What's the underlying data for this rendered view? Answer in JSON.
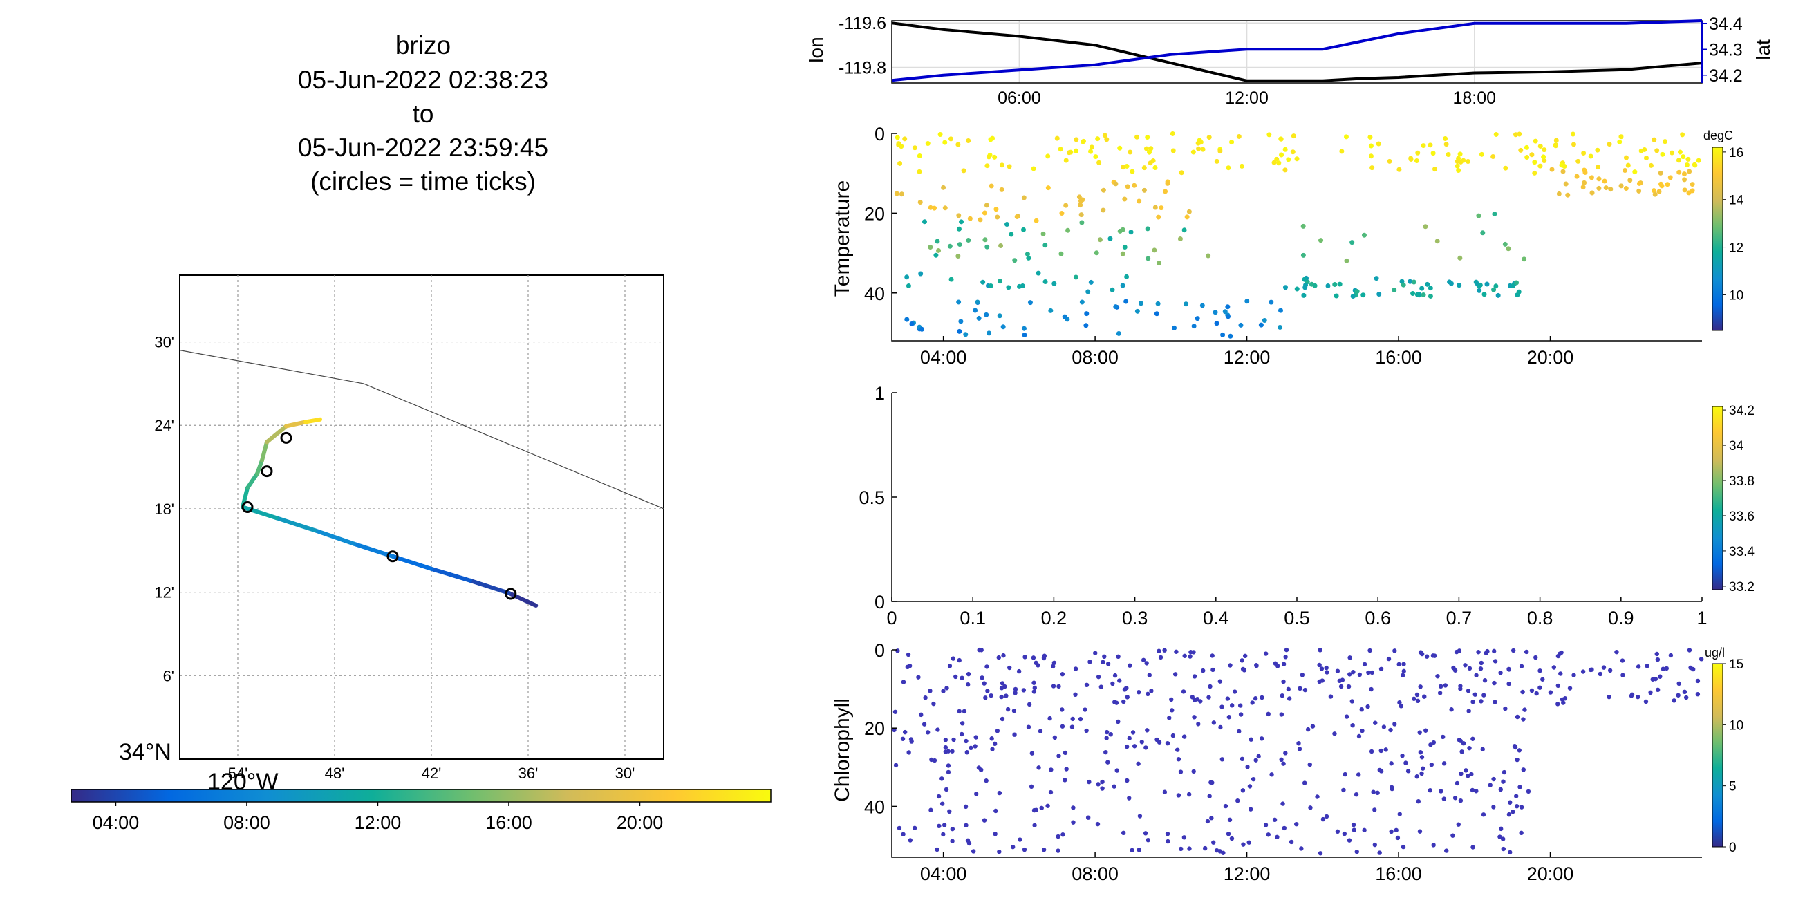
{
  "title": {
    "lines": [
      "brizo",
      "05-Jun-2022 02:38:23",
      "to",
      "05-Jun-2022 23:59:45",
      "(circles = time ticks)"
    ]
  },
  "colors": {
    "lat_axis": "#0000cc",
    "lon_line": "#000000",
    "chlorophyll_point": "#3c36b8",
    "coastline": "#444444",
    "parula": [
      "#352a87",
      "#0268e1",
      "#108ed2",
      "#0fae99",
      "#6ebe6f",
      "#d1bb59",
      "#fec832",
      "#f9fb0e"
    ]
  },
  "chart_data": [
    {
      "id": "track_map",
      "type": "scatter",
      "title": "",
      "xlabel": "",
      "ylabel": "",
      "xlim": [
        -119.96,
        -119.46
      ],
      "ylim": [
        34.0,
        34.58
      ],
      "x_ticks": [
        -119.9,
        -119.8,
        -119.7,
        -119.6,
        -119.5
      ],
      "x_tick_labels": [
        "54'",
        "48'",
        "42'",
        "36'",
        "30'"
      ],
      "y_ticks": [
        34.1,
        34.2,
        34.3,
        34.4,
        34.5
      ],
      "y_tick_labels": [
        "6'",
        "12'",
        "18'",
        "24'",
        "30'"
      ],
      "corner_lat_label": "34°N",
      "corner_lon_label": "120°W",
      "grid": true,
      "coastline": {
        "lon": [
          -119.96,
          -119.77,
          -119.46
        ],
        "lat": [
          34.49,
          34.45,
          34.3
        ]
      },
      "track": {
        "lon": [
          -119.592,
          -119.62,
          -119.66,
          -119.7,
          -119.74,
          -119.78,
          -119.82,
          -119.86,
          -119.895,
          -119.89,
          -119.88,
          -119.875,
          -119.87,
          -119.85,
          -119.83,
          -119.815
        ],
        "lat": [
          34.184,
          34.199,
          34.214,
          34.228,
          34.243,
          34.258,
          34.274,
          34.289,
          34.302,
          34.325,
          34.342,
          34.358,
          34.38,
          34.399,
          34.404,
          34.407
        ],
        "hour": [
          2.64,
          3.5,
          4.5,
          5.6,
          6.8,
          8.0,
          9.2,
          10.4,
          11.6,
          12.6,
          13.6,
          14.8,
          16.0,
          18.0,
          20.5,
          24.0
        ]
      },
      "time_tick_circles": {
        "lon": [
          -119.618,
          -119.74,
          -119.89,
          -119.87,
          -119.85
        ],
        "lat": [
          34.198,
          34.243,
          34.302,
          34.345,
          34.385
        ]
      },
      "colorbar": {
        "ticks": [
          4,
          8,
          12,
          16,
          20
        ],
        "tick_labels": [
          "04:00",
          "08:00",
          "12:00",
          "16:00",
          "20:00"
        ],
        "range": [
          2.64,
          24.0
        ]
      }
    },
    {
      "id": "lon_lat",
      "type": "line",
      "x_ticks": [
        6,
        12,
        18
      ],
      "x_tick_labels": [
        "06:00",
        "12:00",
        "18:00"
      ],
      "xlim": [
        2.64,
        24.0
      ],
      "left_axis": {
        "label": "lon",
        "ylim": [
          -119.87,
          -119.59
        ],
        "ticks": [
          -119.6,
          -119.8
        ],
        "tick_labels": [
          "-119.6",
          "-119.8"
        ]
      },
      "right_axis": {
        "label": "lat",
        "ylim": [
          34.17,
          34.41
        ],
        "ticks": [
          34.2,
          34.3,
          34.4
        ],
        "tick_labels": [
          "34.2",
          "34.3",
          "34.4"
        ]
      },
      "grid": true,
      "series": [
        {
          "name": "lon",
          "axis": "left",
          "x": [
            2.64,
            4,
            6,
            8,
            9,
            10,
            11,
            12,
            13,
            14,
            15,
            16,
            18,
            20,
            22,
            24
          ],
          "y": [
            -119.6,
            -119.63,
            -119.66,
            -119.7,
            -119.74,
            -119.78,
            -119.82,
            -119.86,
            -119.86,
            -119.86,
            -119.85,
            -119.845,
            -119.825,
            -119.82,
            -119.81,
            -119.78
          ]
        },
        {
          "name": "lat",
          "axis": "right",
          "x": [
            2.64,
            4,
            6,
            8,
            9,
            10,
            11,
            12,
            13,
            14,
            15,
            16,
            17,
            18,
            20,
            22,
            24
          ],
          "y": [
            34.18,
            34.2,
            34.22,
            34.24,
            34.26,
            34.28,
            34.29,
            34.3,
            34.3,
            34.3,
            34.33,
            34.36,
            34.38,
            34.4,
            34.4,
            34.4,
            34.41
          ]
        }
      ]
    },
    {
      "id": "temperature",
      "type": "scatter",
      "ylabel": "Temperature",
      "xlim": [
        2.64,
        24.0
      ],
      "ylim": [
        52,
        0
      ],
      "y_ticks": [
        0,
        20,
        40
      ],
      "y_tick_labels": [
        "0",
        "20",
        "40"
      ],
      "x_ticks": [
        4,
        8,
        12,
        16,
        20
      ],
      "x_tick_labels": [
        "04:00",
        "08:00",
        "12:00",
        "16:00",
        "20:00"
      ],
      "colorbar": {
        "label": "degC",
        "range": [
          8.5,
          16.2
        ],
        "ticks": [
          10,
          12,
          14,
          16
        ],
        "tick_labels": [
          "10",
          "12",
          "14",
          "16"
        ]
      },
      "layers": [
        {
          "t_start": 2.7,
          "t_end": 24.0,
          "depth_min": 0,
          "depth_max": 10,
          "value_min": 15.6,
          "value_max": 16.2,
          "count": 170
        },
        {
          "t_start": 2.7,
          "t_end": 10.5,
          "depth_min": 12,
          "depth_max": 22,
          "value_min": 14.3,
          "value_max": 15.2,
          "count": 45
        },
        {
          "t_start": 20.0,
          "t_end": 24.0,
          "depth_min": 9,
          "depth_max": 16,
          "value_min": 14.6,
          "value_max": 15.2,
          "count": 40
        },
        {
          "t_start": 3.5,
          "t_end": 11.5,
          "depth_min": 22,
          "depth_max": 33,
          "value_min": 11.5,
          "value_max": 13.5,
          "count": 40
        },
        {
          "t_start": 13.0,
          "t_end": 19.5,
          "depth_min": 20,
          "depth_max": 32,
          "value_min": 12.0,
          "value_max": 13.5,
          "count": 15
        },
        {
          "t_start": 2.7,
          "t_end": 9.0,
          "depth_min": 35,
          "depth_max": 40,
          "value_min": 11.0,
          "value_max": 12.0,
          "count": 20
        },
        {
          "t_start": 13.0,
          "t_end": 19.5,
          "depth_min": 36,
          "depth_max": 41,
          "value_min": 11.2,
          "value_max": 12.2,
          "count": 55
        },
        {
          "t_start": 3.0,
          "t_end": 13.2,
          "depth_min": 42,
          "depth_max": 51,
          "value_min": 9.8,
          "value_max": 11.0,
          "count": 55
        }
      ]
    },
    {
      "id": "salinity_empty",
      "type": "scatter",
      "xlim": [
        0,
        1
      ],
      "ylim": [
        0,
        1
      ],
      "x_ticks": [
        0,
        0.1,
        0.2,
        0.3,
        0.4,
        0.5,
        0.6,
        0.7,
        0.8,
        0.9,
        1
      ],
      "x_tick_labels": [
        "0",
        "0.1",
        "0.2",
        "0.3",
        "0.4",
        "0.5",
        "0.6",
        "0.7",
        "0.8",
        "0.9",
        "1"
      ],
      "y_ticks": [
        0,
        0.5,
        1
      ],
      "y_tick_labels": [
        "0",
        "0.5",
        "1"
      ],
      "colorbar": {
        "label": "",
        "range": [
          33.18,
          34.22
        ],
        "ticks": [
          33.2,
          33.4,
          33.6,
          33.8,
          34,
          34.2
        ],
        "tick_labels": [
          "33.2",
          "33.4",
          "33.6",
          "33.8",
          "34",
          "34.2"
        ]
      },
      "values": []
    },
    {
      "id": "chlorophyll",
      "type": "scatter",
      "ylabel": "Chlorophyll",
      "xlim": [
        2.64,
        24.0
      ],
      "ylim": [
        53,
        0
      ],
      "y_ticks": [
        0,
        20,
        40
      ],
      "y_tick_labels": [
        "0",
        "20",
        "40"
      ],
      "x_ticks": [
        4,
        8,
        12,
        16,
        20
      ],
      "x_tick_labels": [
        "04:00",
        "08:00",
        "12:00",
        "16:00",
        "20:00"
      ],
      "colorbar": {
        "label": "ug/l",
        "range": [
          0,
          15
        ],
        "ticks": [
          0,
          5,
          10,
          15
        ],
        "tick_labels": [
          "0",
          "5",
          "10",
          "15"
        ]
      },
      "value_range_all_points": [
        0,
        1
      ],
      "layers": [
        {
          "t_start": 2.7,
          "t_end": 24.0,
          "depth_min": 0,
          "depth_max": 14,
          "count": 260
        },
        {
          "t_start": 2.7,
          "t_end": 19.5,
          "depth_min": 14,
          "depth_max": 28,
          "count": 130
        },
        {
          "t_start": 2.7,
          "t_end": 19.5,
          "depth_min": 28,
          "depth_max": 52,
          "count": 200
        }
      ]
    }
  ]
}
